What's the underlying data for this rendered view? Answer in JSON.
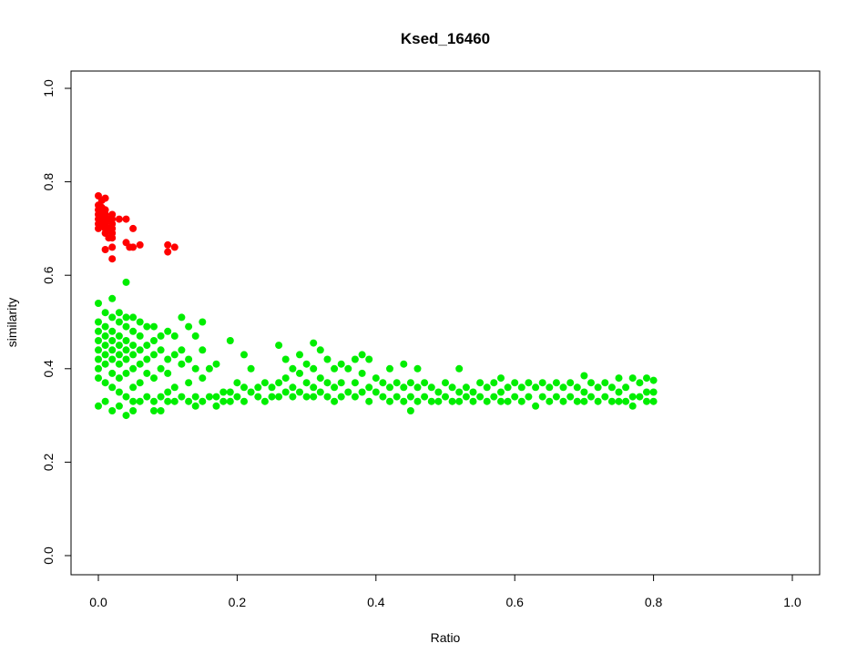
{
  "chart_data": {
    "type": "scatter",
    "title": "Ksed_16460",
    "xlabel": "Ratio",
    "ylabel": "similarity",
    "xlim": [
      0,
      1
    ],
    "ylim": [
      0,
      1
    ],
    "x_ticks": [
      "0.0",
      "0.2",
      "0.4",
      "0.6",
      "0.8",
      "1.0"
    ],
    "y_ticks": [
      "0.0",
      "0.2",
      "0.4",
      "0.6",
      "0.8",
      "1.0"
    ],
    "grid": false,
    "legend": "none",
    "colors": {
      "red": "#ff0000",
      "green": "#00ee00"
    },
    "series": [
      {
        "color": "#ff0000",
        "points": [
          [
            0.0,
            0.77
          ],
          [
            0.0,
            0.75
          ],
          [
            0.0,
            0.74
          ],
          [
            0.0,
            0.73
          ],
          [
            0.0,
            0.72
          ],
          [
            0.0,
            0.71
          ],
          [
            0.0,
            0.7
          ],
          [
            0.005,
            0.76
          ],
          [
            0.005,
            0.745
          ],
          [
            0.005,
            0.735
          ],
          [
            0.005,
            0.725
          ],
          [
            0.005,
            0.715
          ],
          [
            0.005,
            0.705
          ],
          [
            0.01,
            0.765
          ],
          [
            0.01,
            0.74
          ],
          [
            0.01,
            0.73
          ],
          [
            0.01,
            0.72
          ],
          [
            0.01,
            0.71
          ],
          [
            0.01,
            0.7
          ],
          [
            0.01,
            0.69
          ],
          [
            0.01,
            0.655
          ],
          [
            0.015,
            0.72
          ],
          [
            0.015,
            0.7
          ],
          [
            0.015,
            0.68
          ],
          [
            0.02,
            0.73
          ],
          [
            0.02,
            0.72
          ],
          [
            0.02,
            0.71
          ],
          [
            0.02,
            0.7
          ],
          [
            0.02,
            0.69
          ],
          [
            0.02,
            0.68
          ],
          [
            0.02,
            0.66
          ],
          [
            0.02,
            0.635
          ],
          [
            0.03,
            0.72
          ],
          [
            0.04,
            0.72
          ],
          [
            0.04,
            0.67
          ],
          [
            0.045,
            0.66
          ],
          [
            0.05,
            0.7
          ],
          [
            0.05,
            0.66
          ],
          [
            0.06,
            0.665
          ],
          [
            0.1,
            0.665
          ],
          [
            0.1,
            0.65
          ],
          [
            0.11,
            0.66
          ]
        ]
      },
      {
        "color": "#00ee00",
        "points": [
          [
            0.0,
            0.54
          ],
          [
            0.0,
            0.5
          ],
          [
            0.0,
            0.48
          ],
          [
            0.0,
            0.46
          ],
          [
            0.0,
            0.44
          ],
          [
            0.0,
            0.42
          ],
          [
            0.0,
            0.4
          ],
          [
            0.0,
            0.38
          ],
          [
            0.0,
            0.32
          ],
          [
            0.01,
            0.52
          ],
          [
            0.01,
            0.49
          ],
          [
            0.01,
            0.47
          ],
          [
            0.01,
            0.45
          ],
          [
            0.01,
            0.43
          ],
          [
            0.01,
            0.41
          ],
          [
            0.01,
            0.37
          ],
          [
            0.01,
            0.33
          ],
          [
            0.02,
            0.55
          ],
          [
            0.02,
            0.51
          ],
          [
            0.02,
            0.48
          ],
          [
            0.02,
            0.46
          ],
          [
            0.02,
            0.44
          ],
          [
            0.02,
            0.42
          ],
          [
            0.02,
            0.39
          ],
          [
            0.02,
            0.36
          ],
          [
            0.02,
            0.31
          ],
          [
            0.03,
            0.52
          ],
          [
            0.03,
            0.5
          ],
          [
            0.03,
            0.47
          ],
          [
            0.03,
            0.45
          ],
          [
            0.03,
            0.43
          ],
          [
            0.03,
            0.41
          ],
          [
            0.03,
            0.38
          ],
          [
            0.03,
            0.35
          ],
          [
            0.03,
            0.32
          ],
          [
            0.04,
            0.585
          ],
          [
            0.04,
            0.51
          ],
          [
            0.04,
            0.49
          ],
          [
            0.04,
            0.46
          ],
          [
            0.04,
            0.44
          ],
          [
            0.04,
            0.42
          ],
          [
            0.04,
            0.39
          ],
          [
            0.04,
            0.34
          ],
          [
            0.04,
            0.3
          ],
          [
            0.05,
            0.51
          ],
          [
            0.05,
            0.48
          ],
          [
            0.05,
            0.45
          ],
          [
            0.05,
            0.43
          ],
          [
            0.05,
            0.4
          ],
          [
            0.05,
            0.36
          ],
          [
            0.05,
            0.33
          ],
          [
            0.05,
            0.31
          ],
          [
            0.06,
            0.5
          ],
          [
            0.06,
            0.47
          ],
          [
            0.06,
            0.44
          ],
          [
            0.06,
            0.41
          ],
          [
            0.06,
            0.37
          ],
          [
            0.06,
            0.33
          ],
          [
            0.07,
            0.49
          ],
          [
            0.07,
            0.45
          ],
          [
            0.07,
            0.42
          ],
          [
            0.07,
            0.39
          ],
          [
            0.07,
            0.34
          ],
          [
            0.08,
            0.49
          ],
          [
            0.08,
            0.46
          ],
          [
            0.08,
            0.43
          ],
          [
            0.08,
            0.38
          ],
          [
            0.08,
            0.33
          ],
          [
            0.08,
            0.31
          ],
          [
            0.09,
            0.47
          ],
          [
            0.09,
            0.44
          ],
          [
            0.09,
            0.4
          ],
          [
            0.09,
            0.34
          ],
          [
            0.09,
            0.31
          ],
          [
            0.1,
            0.48
          ],
          [
            0.1,
            0.42
          ],
          [
            0.1,
            0.39
          ],
          [
            0.1,
            0.35
          ],
          [
            0.1,
            0.33
          ],
          [
            0.11,
            0.47
          ],
          [
            0.11,
            0.43
          ],
          [
            0.11,
            0.36
          ],
          [
            0.11,
            0.33
          ],
          [
            0.12,
            0.51
          ],
          [
            0.12,
            0.44
          ],
          [
            0.12,
            0.41
          ],
          [
            0.12,
            0.34
          ],
          [
            0.13,
            0.49
          ],
          [
            0.13,
            0.42
          ],
          [
            0.13,
            0.37
          ],
          [
            0.13,
            0.33
          ],
          [
            0.14,
            0.47
          ],
          [
            0.14,
            0.4
          ],
          [
            0.14,
            0.34
          ],
          [
            0.14,
            0.32
          ],
          [
            0.15,
            0.5
          ],
          [
            0.15,
            0.44
          ],
          [
            0.15,
            0.38
          ],
          [
            0.15,
            0.33
          ],
          [
            0.16,
            0.4
          ],
          [
            0.16,
            0.34
          ],
          [
            0.17,
            0.41
          ],
          [
            0.17,
            0.34
          ],
          [
            0.17,
            0.32
          ],
          [
            0.18,
            0.35
          ],
          [
            0.18,
            0.33
          ],
          [
            0.19,
            0.46
          ],
          [
            0.19,
            0.35
          ],
          [
            0.19,
            0.33
          ],
          [
            0.2,
            0.37
          ],
          [
            0.2,
            0.34
          ],
          [
            0.21,
            0.43
          ],
          [
            0.21,
            0.36
          ],
          [
            0.21,
            0.33
          ],
          [
            0.22,
            0.4
          ],
          [
            0.22,
            0.35
          ],
          [
            0.23,
            0.36
          ],
          [
            0.23,
            0.34
          ],
          [
            0.24,
            0.37
          ],
          [
            0.24,
            0.33
          ],
          [
            0.25,
            0.36
          ],
          [
            0.25,
            0.34
          ],
          [
            0.26,
            0.45
          ],
          [
            0.26,
            0.37
          ],
          [
            0.26,
            0.34
          ],
          [
            0.27,
            0.42
          ],
          [
            0.27,
            0.38
          ],
          [
            0.27,
            0.35
          ],
          [
            0.28,
            0.4
          ],
          [
            0.28,
            0.36
          ],
          [
            0.28,
            0.34
          ],
          [
            0.29,
            0.43
          ],
          [
            0.29,
            0.39
          ],
          [
            0.29,
            0.35
          ],
          [
            0.3,
            0.41
          ],
          [
            0.3,
            0.37
          ],
          [
            0.3,
            0.34
          ],
          [
            0.31,
            0.455
          ],
          [
            0.31,
            0.4
          ],
          [
            0.31,
            0.36
          ],
          [
            0.31,
            0.34
          ],
          [
            0.32,
            0.44
          ],
          [
            0.32,
            0.38
          ],
          [
            0.32,
            0.35
          ],
          [
            0.33,
            0.42
          ],
          [
            0.33,
            0.37
          ],
          [
            0.33,
            0.34
          ],
          [
            0.34,
            0.4
          ],
          [
            0.34,
            0.36
          ],
          [
            0.34,
            0.33
          ],
          [
            0.35,
            0.41
          ],
          [
            0.35,
            0.37
          ],
          [
            0.35,
            0.34
          ],
          [
            0.36,
            0.4
          ],
          [
            0.36,
            0.35
          ],
          [
            0.37,
            0.42
          ],
          [
            0.37,
            0.37
          ],
          [
            0.37,
            0.34
          ],
          [
            0.38,
            0.43
          ],
          [
            0.38,
            0.39
          ],
          [
            0.38,
            0.35
          ],
          [
            0.39,
            0.42
          ],
          [
            0.39,
            0.36
          ],
          [
            0.39,
            0.33
          ],
          [
            0.4,
            0.38
          ],
          [
            0.4,
            0.35
          ],
          [
            0.41,
            0.37
          ],
          [
            0.41,
            0.34
          ],
          [
            0.42,
            0.4
          ],
          [
            0.42,
            0.36
          ],
          [
            0.42,
            0.33
          ],
          [
            0.43,
            0.37
          ],
          [
            0.43,
            0.34
          ],
          [
            0.44,
            0.41
          ],
          [
            0.44,
            0.36
          ],
          [
            0.44,
            0.33
          ],
          [
            0.45,
            0.37
          ],
          [
            0.45,
            0.34
          ],
          [
            0.45,
            0.31
          ],
          [
            0.46,
            0.4
          ],
          [
            0.46,
            0.36
          ],
          [
            0.46,
            0.33
          ],
          [
            0.47,
            0.37
          ],
          [
            0.47,
            0.34
          ],
          [
            0.48,
            0.36
          ],
          [
            0.48,
            0.33
          ],
          [
            0.49,
            0.35
          ],
          [
            0.49,
            0.33
          ],
          [
            0.5,
            0.37
          ],
          [
            0.5,
            0.34
          ],
          [
            0.51,
            0.36
          ],
          [
            0.51,
            0.33
          ],
          [
            0.52,
            0.4
          ],
          [
            0.52,
            0.35
          ],
          [
            0.52,
            0.33
          ],
          [
            0.53,
            0.36
          ],
          [
            0.53,
            0.34
          ],
          [
            0.54,
            0.35
          ],
          [
            0.54,
            0.33
          ],
          [
            0.55,
            0.37
          ],
          [
            0.55,
            0.34
          ],
          [
            0.56,
            0.36
          ],
          [
            0.56,
            0.33
          ],
          [
            0.57,
            0.37
          ],
          [
            0.57,
            0.34
          ],
          [
            0.58,
            0.38
          ],
          [
            0.58,
            0.35
          ],
          [
            0.58,
            0.33
          ],
          [
            0.59,
            0.36
          ],
          [
            0.59,
            0.33
          ],
          [
            0.6,
            0.37
          ],
          [
            0.6,
            0.34
          ],
          [
            0.61,
            0.36
          ],
          [
            0.61,
            0.33
          ],
          [
            0.62,
            0.37
          ],
          [
            0.62,
            0.34
          ],
          [
            0.63,
            0.36
          ],
          [
            0.63,
            0.32
          ],
          [
            0.64,
            0.37
          ],
          [
            0.64,
            0.34
          ],
          [
            0.65,
            0.36
          ],
          [
            0.65,
            0.33
          ],
          [
            0.66,
            0.37
          ],
          [
            0.66,
            0.34
          ],
          [
            0.67,
            0.36
          ],
          [
            0.67,
            0.33
          ],
          [
            0.68,
            0.37
          ],
          [
            0.68,
            0.34
          ],
          [
            0.69,
            0.36
          ],
          [
            0.69,
            0.33
          ],
          [
            0.7,
            0.385
          ],
          [
            0.7,
            0.35
          ],
          [
            0.7,
            0.33
          ],
          [
            0.71,
            0.37
          ],
          [
            0.71,
            0.34
          ],
          [
            0.72,
            0.36
          ],
          [
            0.72,
            0.33
          ],
          [
            0.73,
            0.37
          ],
          [
            0.73,
            0.34
          ],
          [
            0.74,
            0.36
          ],
          [
            0.74,
            0.33
          ],
          [
            0.75,
            0.38
          ],
          [
            0.75,
            0.35
          ],
          [
            0.75,
            0.33
          ],
          [
            0.76,
            0.36
          ],
          [
            0.76,
            0.33
          ],
          [
            0.77,
            0.38
          ],
          [
            0.77,
            0.34
          ],
          [
            0.77,
            0.32
          ],
          [
            0.78,
            0.37
          ],
          [
            0.78,
            0.34
          ],
          [
            0.79,
            0.38
          ],
          [
            0.79,
            0.35
          ],
          [
            0.79,
            0.33
          ],
          [
            0.8,
            0.375
          ],
          [
            0.8,
            0.35
          ],
          [
            0.8,
            0.33
          ]
        ]
      }
    ]
  }
}
